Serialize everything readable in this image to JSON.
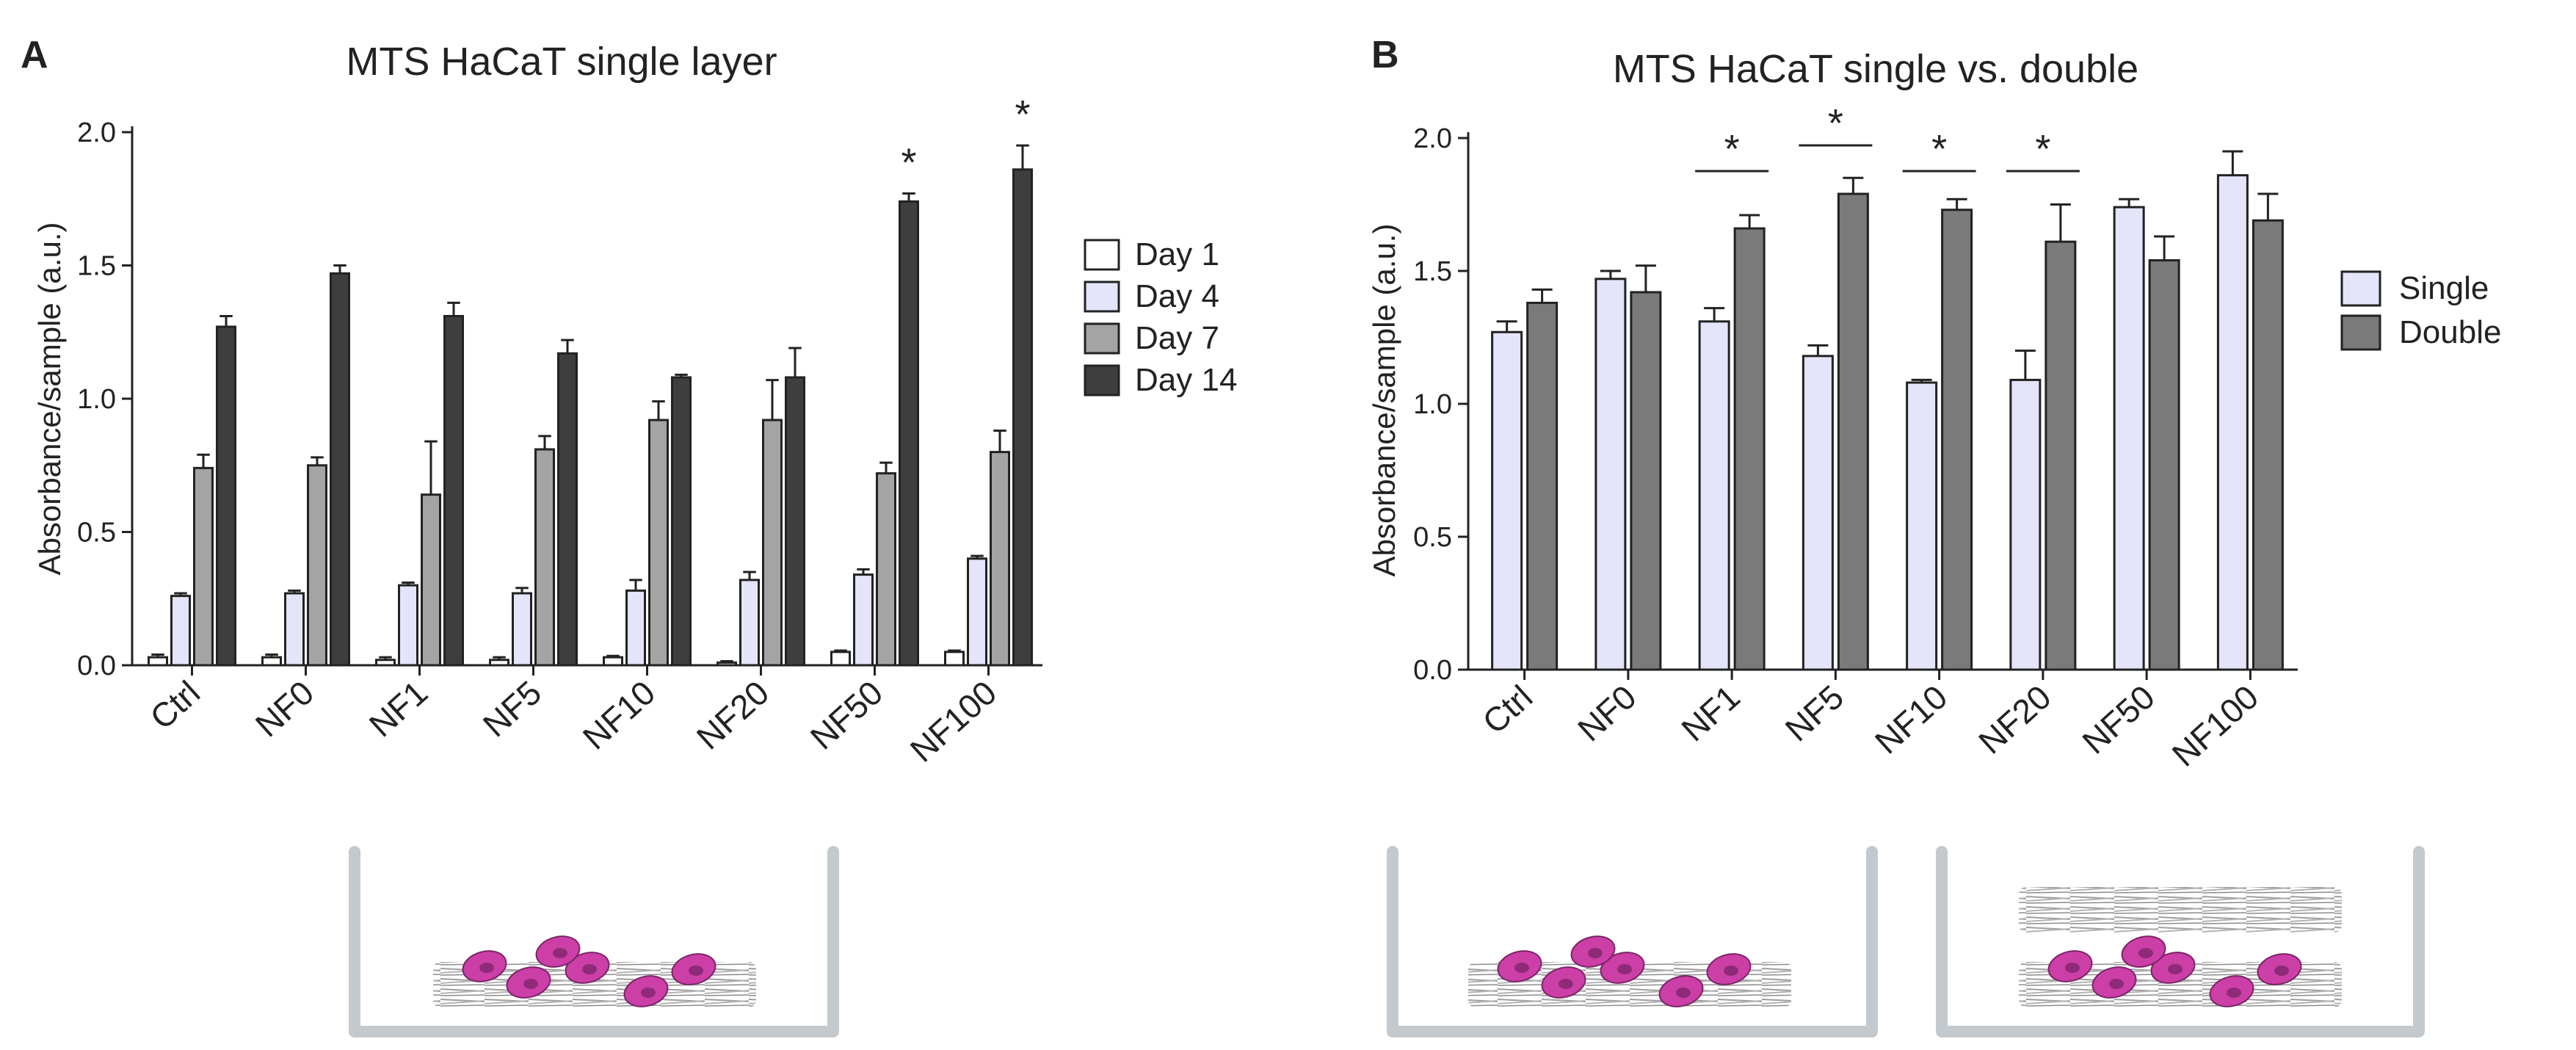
{
  "colors": {
    "day1": "#ffffff",
    "day4": "#e4e4fa",
    "day7": "#a4a4a4",
    "day14": "#3e3e3e",
    "single": "#e4e4fa",
    "double": "#7a7a7a",
    "well": "#c3c9cd",
    "cell": "#cc3fa7",
    "fiber": "#9e9e9e"
  },
  "chart_data": [
    {
      "panel": "A",
      "type": "bar",
      "title": "MTS HaCaT single layer",
      "xlabel": "",
      "ylabel": "Absorbance/sample (a.u.)",
      "ylim": [
        0,
        2.0
      ],
      "yticks": [
        "0.0",
        "0.5",
        "1.0",
        "1.5",
        "2.0"
      ],
      "categories": [
        "Ctrl",
        "NF0",
        "NF1",
        "NF5",
        "NF10",
        "NF20",
        "NF50",
        "NF100"
      ],
      "series": [
        {
          "name": "Day 1",
          "color": "#ffffff",
          "values": [
            0.03,
            0.03,
            0.02,
            0.02,
            0.03,
            0.01,
            0.05,
            0.05
          ],
          "errors": [
            0.01,
            0.01,
            0.01,
            0.01,
            0.005,
            0.005,
            0.005,
            0.005
          ]
        },
        {
          "name": "Day 4",
          "color": "#e4e4fa",
          "values": [
            0.26,
            0.27,
            0.3,
            0.27,
            0.28,
            0.32,
            0.34,
            0.4
          ],
          "errors": [
            0.01,
            0.01,
            0.01,
            0.02,
            0.04,
            0.03,
            0.02,
            0.01
          ]
        },
        {
          "name": "Day 7",
          "color": "#a4a4a4",
          "values": [
            0.74,
            0.75,
            0.64,
            0.81,
            0.92,
            0.92,
            0.72,
            0.8
          ],
          "errors": [
            0.05,
            0.03,
            0.2,
            0.05,
            0.07,
            0.15,
            0.04,
            0.08
          ]
        },
        {
          "name": "Day 14",
          "color": "#3e3e3e",
          "values": [
            1.27,
            1.47,
            1.31,
            1.17,
            1.08,
            1.08,
            1.74,
            1.86
          ],
          "errors": [
            0.04,
            0.03,
            0.05,
            0.05,
            0.01,
            0.11,
            0.03,
            0.09
          ]
        }
      ],
      "significance": [
        {
          "category": "NF50",
          "series": "Day 14",
          "label": "*"
        },
        {
          "category": "NF100",
          "series": "Day 14",
          "label": "*"
        }
      ]
    },
    {
      "panel": "B",
      "type": "bar",
      "title": "MTS HaCaT single vs. double",
      "xlabel": "",
      "ylabel": "Absorbance/sample (a.u.)",
      "ylim": [
        0,
        2.0
      ],
      "yticks": [
        "0.0",
        "0.5",
        "1.0",
        "1.5",
        "2.0"
      ],
      "categories": [
        "Ctrl",
        "NF0",
        "NF1",
        "NF5",
        "NF10",
        "NF20",
        "NF50",
        "NF100"
      ],
      "series": [
        {
          "name": "Single",
          "color": "#e4e4fa",
          "values": [
            1.27,
            1.47,
            1.31,
            1.18,
            1.08,
            1.09,
            1.74,
            1.86
          ],
          "errors": [
            0.04,
            0.03,
            0.05,
            0.04,
            0.01,
            0.11,
            0.03,
            0.09
          ]
        },
        {
          "name": "Double",
          "color": "#7a7a7a",
          "values": [
            1.38,
            1.42,
            1.66,
            1.79,
            1.73,
            1.61,
            1.54,
            1.69
          ],
          "errors": [
            0.05,
            0.1,
            0.05,
            0.06,
            0.04,
            0.14,
            0.09,
            0.1
          ]
        }
      ],
      "significance": [
        {
          "category": "NF1",
          "label": "*"
        },
        {
          "category": "NF5",
          "label": "*"
        },
        {
          "category": "NF10",
          "label": "*"
        },
        {
          "category": "NF20",
          "label": "*"
        }
      ]
    }
  ]
}
